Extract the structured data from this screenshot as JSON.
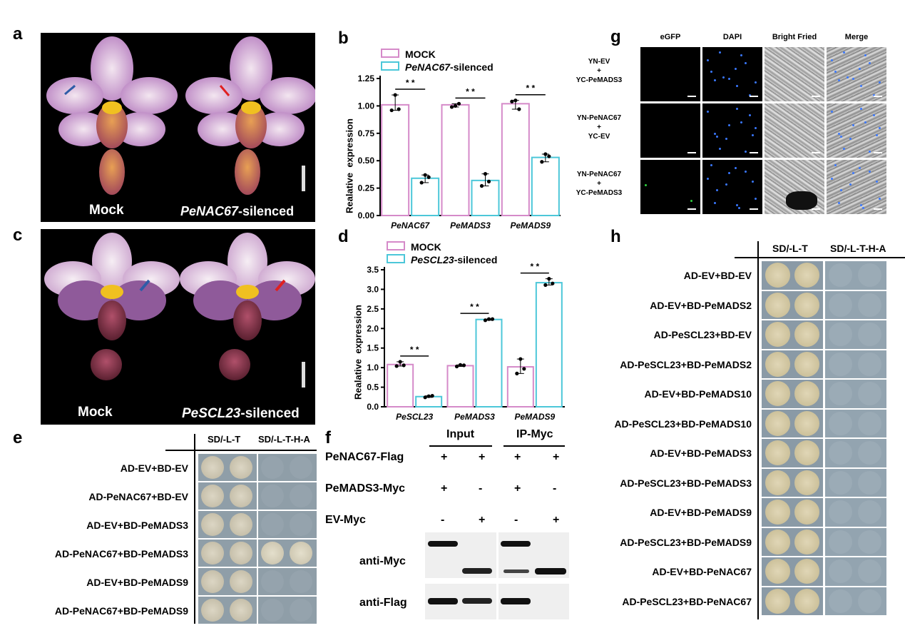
{
  "panels": {
    "a": "a",
    "b": "b",
    "c": "c",
    "d": "d",
    "e": "e",
    "f": "f",
    "g": "g",
    "h": "h"
  },
  "photo_a": {
    "left": "Mock",
    "right_gene": "PeNAC67",
    "right_suffix": "-silenced"
  },
  "photo_c": {
    "left": "Mock",
    "right_gene": "PeSCL23",
    "right_suffix": "-silenced"
  },
  "chart_data": [
    {
      "type": "bar",
      "panel": "b",
      "categories": [
        "PeNAC67",
        "PeMADS3",
        "PeMADS9"
      ],
      "series": [
        {
          "name": "MOCK",
          "values": [
            1.01,
            1.01,
            1.02
          ],
          "points": [
            [
              0.96,
              1.1,
              0.97
            ],
            [
              0.99,
              1.0,
              1.02
            ],
            [
              1.04,
              1.05,
              0.97
            ]
          ],
          "color": "#d58ac9"
        },
        {
          "name": "PeNAC67-silenced",
          "values": [
            0.34,
            0.32,
            0.53
          ],
          "points": [
            [
              0.3,
              0.37,
              0.35
            ],
            [
              0.27,
              0.38,
              0.31
            ],
            [
              0.49,
              0.56,
              0.54
            ]
          ],
          "color": "#4cc7d9"
        }
      ],
      "legend": [
        {
          "gene": "",
          "suffix": "MOCK"
        },
        {
          "gene": "PeNAC67",
          "suffix": "-silenced"
        }
      ],
      "ylabel": "Realative  expression",
      "ylim": [
        0,
        1.25
      ],
      "yticks": [
        "0.00",
        "0.25",
        "0.50",
        "0.75",
        "1.00",
        "1.25"
      ],
      "annotations": [
        "* *",
        "* *",
        "* *"
      ]
    },
    {
      "type": "bar",
      "panel": "d",
      "categories": [
        "PeSCL23",
        "PeMADS3",
        "PeMADS9"
      ],
      "series": [
        {
          "name": "MOCK",
          "values": [
            1.08,
            1.05,
            1.02
          ],
          "points": [
            [
              1.04,
              1.15,
              1.06
            ],
            [
              1.03,
              1.07,
              1.06
            ],
            [
              0.85,
              1.22,
              0.97
            ]
          ],
          "color": "#d58ac9"
        },
        {
          "name": "PeSCL23-silenced",
          "values": [
            0.26,
            2.23,
            3.17
          ],
          "points": [
            [
              0.24,
              0.27,
              0.28
            ],
            [
              2.21,
              2.24,
              2.24
            ],
            [
              3.11,
              3.27,
              3.15
            ]
          ],
          "color": "#4cc7d9"
        }
      ],
      "legend": [
        {
          "gene": "",
          "suffix": "MOCK"
        },
        {
          "gene": "PeSCL23",
          "suffix": "-silenced"
        }
      ],
      "ylabel": "Realative  expression",
      "ylim": [
        0,
        3.5
      ],
      "yticks": [
        "0.0",
        "0.5",
        "1.0",
        "1.5",
        "2.0",
        "2.5",
        "3.0",
        "3.5"
      ],
      "annotations": [
        "* *",
        "* *",
        "* *"
      ]
    }
  ],
  "panel_e": {
    "columns": [
      "SD/-L-T",
      "SD/-L-T-H-A"
    ],
    "rows": [
      "AD-EV+BD-EV",
      "AD-PeNAC67+BD-EV",
      "AD-EV+BD-PeMADS3",
      "AD-PeNAC67+BD-PeMADS3",
      "AD-EV+BD-PeMADS9",
      "AD-PeNAC67+BD-PeMADS9"
    ],
    "growth_on_selective": [
      false,
      false,
      false,
      true,
      false,
      false
    ]
  },
  "panel_f": {
    "groups": [
      "Input",
      "IP-Myc"
    ],
    "rows": [
      {
        "label": "PeNAC67-Flag",
        "values": [
          "+",
          "+",
          "+",
          "+"
        ]
      },
      {
        "label": "PeMADS3-Myc",
        "values": [
          "+",
          "-",
          "+",
          "-"
        ]
      },
      {
        "label": "EV-Myc",
        "values": [
          "-",
          "+",
          "-",
          "+"
        ]
      }
    ],
    "blots": [
      "anti-Myc",
      "anti-Flag"
    ]
  },
  "panel_g": {
    "columns": [
      "eGFP",
      "DAPI",
      "Bright Fried",
      "Merge"
    ],
    "rows": [
      {
        "line1": "YN-EV",
        "line2": "+",
        "line3": "YC-PeMADS3"
      },
      {
        "line1": "YN-PeNAC67",
        "line2": "+",
        "line3": "YC-EV"
      },
      {
        "line1": "YN-PeNAC67",
        "line2": "+",
        "line3": "YC-PeMADS3"
      }
    ]
  },
  "panel_h": {
    "columns": [
      "SD/-L-T",
      "SD/-L-T-H-A"
    ],
    "rows": [
      "AD-EV+BD-EV",
      "AD-EV+BD-PeMADS2",
      "AD-PeSCL23+BD-EV",
      "AD-PeSCL23+BD-PeMADS2",
      "AD-EV+BD-PeMADS10",
      "AD-PeSCL23+BD-PeMADS10",
      "AD-EV+BD-PeMADS3",
      "AD-PeSCL23+BD-PeMADS3",
      "AD-EV+BD-PeMADS9",
      "AD-PeSCL23+BD-PeMADS9",
      "AD-EV+BD-PeNAC67",
      "AD-PeSCL23+BD-PeNAC67"
    ]
  },
  "colors": {
    "mock": "#d58ac9",
    "silenced": "#4cc7d9",
    "plate": "#8f9ea8",
    "colony": "#d8cfae"
  }
}
